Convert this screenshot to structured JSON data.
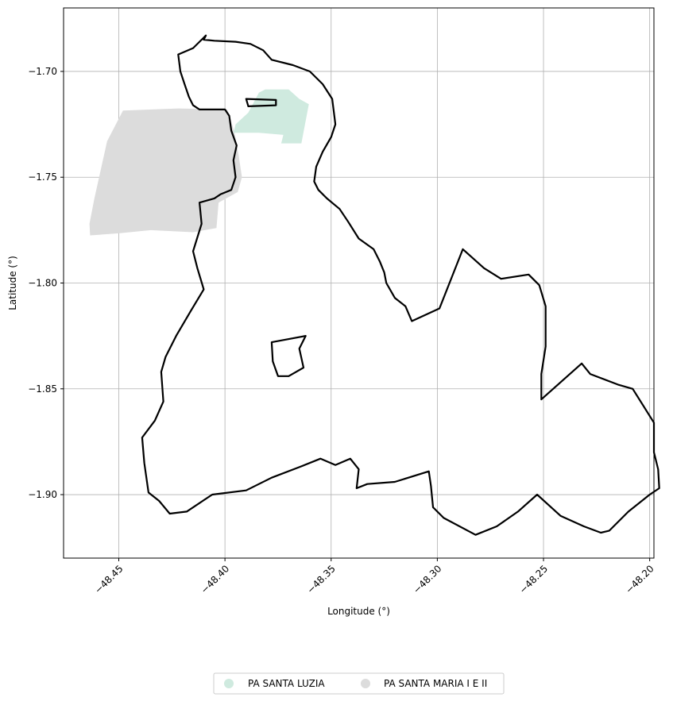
{
  "chart_data": {
    "type": "map",
    "xlabel": "Longitude (°)",
    "ylabel": "Latitude (°)",
    "xlim": [
      -48.476,
      -48.198
    ],
    "ylim": [
      -1.93,
      -1.67
    ],
    "grid": true,
    "x_ticks": [
      -48.45,
      -48.4,
      -48.35,
      -48.3,
      -48.25,
      -48.2
    ],
    "y_ticks": [
      -1.7,
      -1.75,
      -1.8,
      -1.85,
      -1.9
    ],
    "x_tick_labels": [
      "−48.45",
      "−48.40",
      "−48.35",
      "−48.30",
      "−48.25",
      "−48.20"
    ],
    "y_tick_labels": [
      "−1.70",
      "−1.75",
      "−1.80",
      "−1.85",
      "−1.90"
    ],
    "legend_placement": "bottom-center",
    "legend": [
      {
        "label": "PA SANTA LUZIA",
        "color": "#cfeadf"
      },
      {
        "label": "PA SANTA MARIA I E II",
        "color": "#dcdcdc"
      }
    ],
    "layers": [
      {
        "name": "PA SANTA MARIA I E II",
        "type": "polygon",
        "color": "#dcdcdc",
        "outline": false,
        "coords": [
          [
            -48.4635,
            -1.7775
          ],
          [
            -48.4638,
            -1.772
          ],
          [
            -48.4615,
            -1.76
          ],
          [
            -48.4555,
            -1.733
          ],
          [
            -48.448,
            -1.7185
          ],
          [
            -48.422,
            -1.7175
          ],
          [
            -48.399,
            -1.718
          ],
          [
            -48.3975,
            -1.722
          ],
          [
            -48.3955,
            -1.729
          ],
          [
            -48.3935,
            -1.74
          ],
          [
            -48.392,
            -1.75
          ],
          [
            -48.394,
            -1.757
          ],
          [
            -48.403,
            -1.762
          ],
          [
            -48.404,
            -1.774
          ],
          [
            -48.415,
            -1.776
          ],
          [
            -48.435,
            -1.775
          ],
          [
            -48.45,
            -1.7765
          ]
        ]
      },
      {
        "name": "PA SANTA LUZIA",
        "type": "polygon",
        "color": "#cfeadf",
        "outline": false,
        "coords": [
          [
            -48.396,
            -1.729
          ],
          [
            -48.395,
            -1.725
          ],
          [
            -48.389,
            -1.7195
          ],
          [
            -48.384,
            -1.71
          ],
          [
            -48.381,
            -1.7085
          ],
          [
            -48.37,
            -1.7085
          ],
          [
            -48.365,
            -1.713
          ],
          [
            -48.3605,
            -1.7155
          ],
          [
            -48.364,
            -1.734
          ],
          [
            -48.3735,
            -1.734
          ],
          [
            -48.3725,
            -1.73
          ],
          [
            -48.384,
            -1.729
          ]
        ]
      },
      {
        "name": "municipality outline",
        "type": "polygon",
        "color": "#000000",
        "fill": "none",
        "coords": [
          [
            -48.409,
            -1.683
          ],
          [
            -48.41,
            -1.685
          ],
          [
            -48.405,
            -1.6855
          ],
          [
            -48.395,
            -1.686
          ],
          [
            -48.388,
            -1.687
          ],
          [
            -48.382,
            -1.69
          ],
          [
            -48.378,
            -1.6945
          ],
          [
            -48.368,
            -1.697
          ],
          [
            -48.36,
            -1.7
          ],
          [
            -48.354,
            -1.706
          ],
          [
            -48.3495,
            -1.713
          ],
          [
            -48.348,
            -1.725
          ],
          [
            -48.35,
            -1.731
          ],
          [
            -48.354,
            -1.738
          ],
          [
            -48.357,
            -1.745
          ],
          [
            -48.358,
            -1.752
          ],
          [
            -48.356,
            -1.756
          ],
          [
            -48.352,
            -1.76
          ],
          [
            -48.346,
            -1.765
          ],
          [
            -48.342,
            -1.771
          ],
          [
            -48.337,
            -1.779
          ],
          [
            -48.33,
            -1.784
          ],
          [
            -48.327,
            -1.79
          ],
          [
            -48.325,
            -1.795
          ],
          [
            -48.324,
            -1.8
          ],
          [
            -48.32,
            -1.807
          ],
          [
            -48.315,
            -1.811
          ],
          [
            -48.312,
            -1.818
          ],
          [
            -48.299,
            -1.812
          ],
          [
            -48.288,
            -1.784
          ],
          [
            -48.278,
            -1.793
          ],
          [
            -48.27,
            -1.798
          ],
          [
            -48.257,
            -1.796
          ],
          [
            -48.252,
            -1.801
          ],
          [
            -48.249,
            -1.811
          ],
          [
            -48.249,
            -1.82
          ],
          [
            -48.249,
            -1.83
          ],
          [
            -48.251,
            -1.843
          ],
          [
            -48.251,
            -1.855
          ],
          [
            -48.232,
            -1.838
          ],
          [
            -48.228,
            -1.843
          ],
          [
            -48.215,
            -1.848
          ],
          [
            -48.208,
            -1.85
          ],
          [
            -48.198,
            -1.866
          ],
          [
            -48.198,
            -1.88
          ],
          [
            -48.196,
            -1.888
          ],
          [
            -48.1955,
            -1.897
          ],
          [
            -48.2,
            -1.9
          ],
          [
            -48.21,
            -1.908
          ],
          [
            -48.219,
            -1.917
          ],
          [
            -48.223,
            -1.918
          ],
          [
            -48.231,
            -1.915
          ],
          [
            -48.242,
            -1.91
          ],
          [
            -48.253,
            -1.9
          ],
          [
            -48.262,
            -1.908
          ],
          [
            -48.272,
            -1.915
          ],
          [
            -48.282,
            -1.919
          ],
          [
            -48.297,
            -1.911
          ],
          [
            -48.302,
            -1.906
          ],
          [
            -48.303,
            -1.896
          ],
          [
            -48.304,
            -1.889
          ],
          [
            -48.32,
            -1.894
          ],
          [
            -48.333,
            -1.895
          ],
          [
            -48.338,
            -1.897
          ],
          [
            -48.337,
            -1.888
          ],
          [
            -48.341,
            -1.883
          ],
          [
            -48.348,
            -1.886
          ],
          [
            -48.355,
            -1.883
          ],
          [
            -48.365,
            -1.887
          ],
          [
            -48.378,
            -1.892
          ],
          [
            -48.39,
            -1.898
          ],
          [
            -48.406,
            -1.9
          ],
          [
            -48.418,
            -1.908
          ],
          [
            -48.426,
            -1.909
          ],
          [
            -48.431,
            -1.903
          ],
          [
            -48.436,
            -1.899
          ],
          [
            -48.438,
            -1.885
          ],
          [
            -48.439,
            -1.873
          ],
          [
            -48.433,
            -1.865
          ],
          [
            -48.429,
            -1.856
          ],
          [
            -48.43,
            -1.842
          ],
          [
            -48.428,
            -1.835
          ],
          [
            -48.423,
            -1.825
          ],
          [
            -48.416,
            -1.813
          ],
          [
            -48.41,
            -1.803
          ],
          [
            -48.413,
            -1.793
          ],
          [
            -48.415,
            -1.785
          ],
          [
            -48.411,
            -1.772
          ],
          [
            -48.412,
            -1.762
          ],
          [
            -48.405,
            -1.76
          ],
          [
            -48.402,
            -1.758
          ],
          [
            -48.397,
            -1.756
          ],
          [
            -48.395,
            -1.75
          ],
          [
            -48.396,
            -1.742
          ],
          [
            -48.3945,
            -1.735
          ],
          [
            -48.397,
            -1.728
          ],
          [
            -48.398,
            -1.721
          ],
          [
            -48.4,
            -1.718
          ],
          [
            -48.405,
            -1.718
          ],
          [
            -48.412,
            -1.718
          ],
          [
            -48.415,
            -1.716
          ],
          [
            -48.417,
            -1.712
          ],
          [
            -48.419,
            -1.706
          ],
          [
            -48.421,
            -1.7
          ],
          [
            -48.422,
            -1.692
          ],
          [
            -48.415,
            -1.689
          ],
          [
            -48.409,
            -1.683
          ]
        ]
      },
      {
        "name": "island north",
        "type": "polygon",
        "color": "#000000",
        "fill": "none",
        "coords": [
          [
            -48.39,
            -1.713
          ],
          [
            -48.376,
            -1.7135
          ],
          [
            -48.376,
            -1.716
          ],
          [
            -48.389,
            -1.7165
          ],
          [
            -48.39,
            -1.713
          ]
        ]
      },
      {
        "name": "island center",
        "type": "polygon",
        "color": "#000000",
        "fill": "none",
        "coords": [
          [
            -48.378,
            -1.828
          ],
          [
            -48.362,
            -1.825
          ],
          [
            -48.365,
            -1.831
          ],
          [
            -48.363,
            -1.84
          ],
          [
            -48.37,
            -1.844
          ],
          [
            -48.375,
            -1.844
          ],
          [
            -48.3775,
            -1.837
          ],
          [
            -48.378,
            -1.828
          ]
        ]
      }
    ]
  }
}
